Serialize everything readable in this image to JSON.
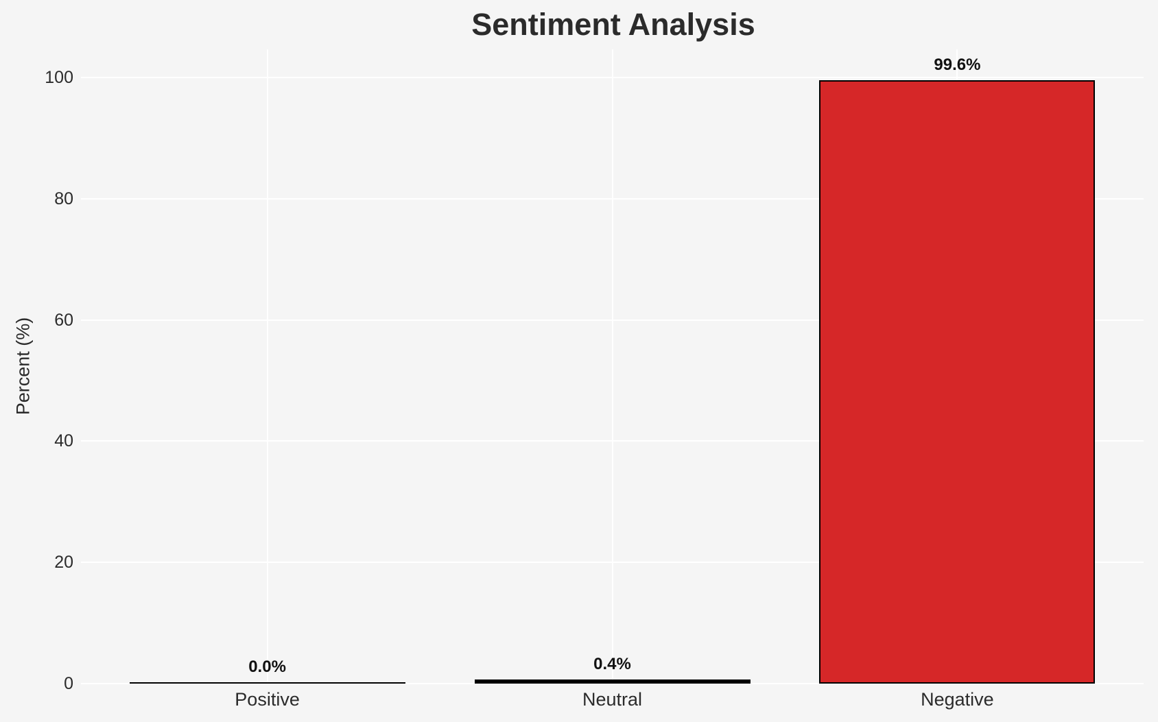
{
  "chart_data": {
    "type": "bar",
    "title": "Sentiment Analysis",
    "xlabel": "",
    "ylabel": "Percent (%)",
    "categories": [
      "Positive",
      "Neutral",
      "Negative"
    ],
    "values": [
      0.0,
      0.4,
      99.6
    ],
    "value_labels": [
      "0.0%",
      "0.4%",
      "99.6%"
    ],
    "yticks": [
      0,
      20,
      40,
      60,
      80,
      100
    ],
    "ylim": [
      0,
      105
    ],
    "grid": true,
    "legend": false,
    "colors": {
      "background": "#f5f5f5",
      "gridline": "#ffffff",
      "bar_fill": "#d62728",
      "bar_edge": "#000000",
      "text": "#2b2b2b"
    }
  }
}
